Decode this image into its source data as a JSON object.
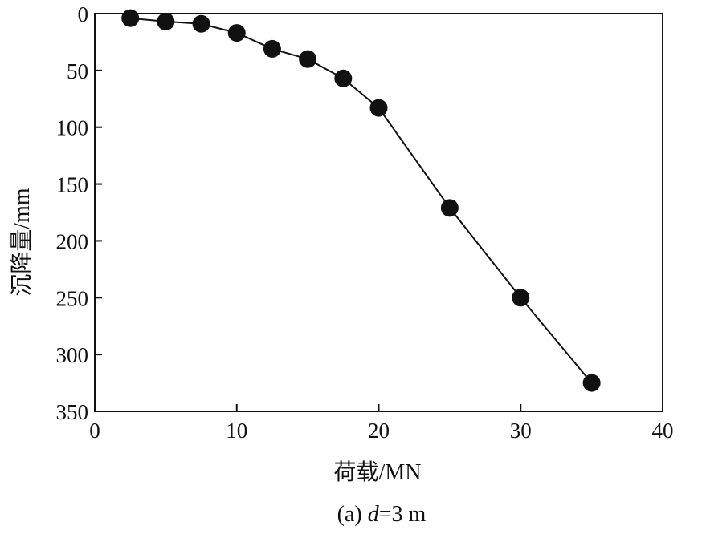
{
  "chart_data": {
    "type": "line",
    "title": "",
    "caption": {
      "prefix": "(a) ",
      "var": "d",
      "suffix": "=3 m"
    },
    "xlabel": "荷载/MN",
    "ylabel": "沉降量/mm",
    "xlim": [
      0,
      40
    ],
    "ylim": [
      0,
      350
    ],
    "y_inverted": true,
    "xticks": [
      0,
      10,
      20,
      30,
      40
    ],
    "yticks": [
      0,
      50,
      100,
      150,
      200,
      250,
      300,
      350
    ],
    "grid": false,
    "marker": "filled-circle",
    "series": [
      {
        "x": [
          2.5,
          5,
          7.5,
          10,
          12.5,
          15,
          17.5,
          20,
          25,
          30,
          35
        ],
        "y": [
          4,
          7,
          9,
          17,
          31,
          40,
          57,
          83,
          171,
          250,
          325
        ]
      }
    ],
    "colors": {
      "line": "#111111",
      "marker": "#111111",
      "axis": "#111111"
    }
  }
}
